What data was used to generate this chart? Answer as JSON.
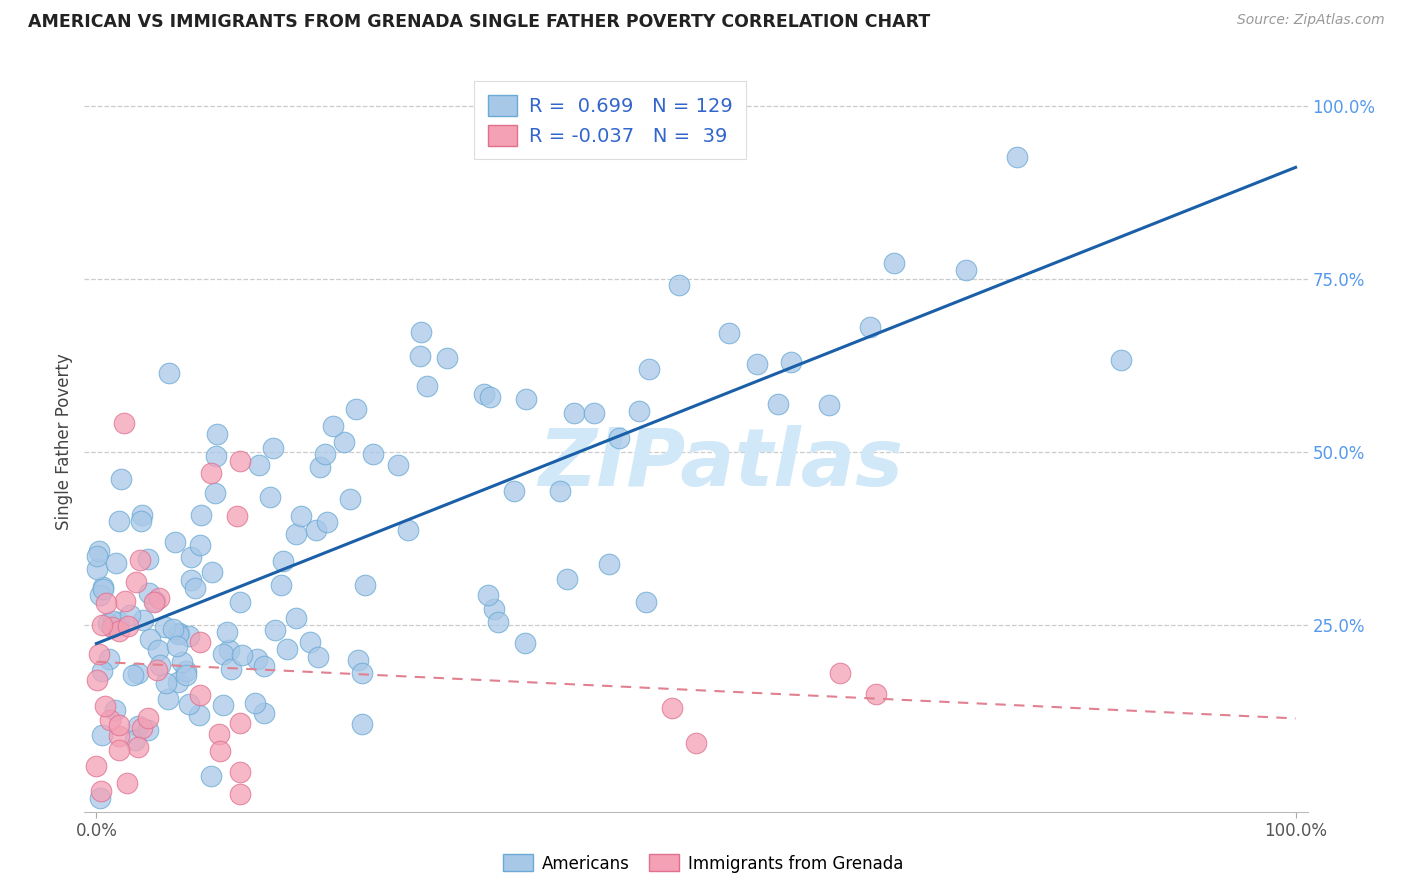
{
  "title": "AMERICAN VS IMMIGRANTS FROM GRENADA SINGLE FATHER POVERTY CORRELATION CHART",
  "source": "Source: ZipAtlas.com",
  "ylabel": "Single Father Poverty",
  "blue_color": "#a8c8e8",
  "blue_edge_color": "#6aaad4",
  "pink_color": "#f4a0b5",
  "pink_edge_color": "#e07090",
  "blue_line_color": "#1a5fa8",
  "pink_line_color": "#e08090",
  "legend_label1": "Americans",
  "legend_label2": "Immigrants from Grenada",
  "r1": 0.699,
  "n1": 129,
  "r2": -0.037,
  "n2": 39,
  "watermark_color": "#d0e8f8",
  "grid_color": "#cccccc",
  "right_tick_color": "#5599ee",
  "title_color": "#222222",
  "source_color": "#999999",
  "ylabel_color": "#444444"
}
